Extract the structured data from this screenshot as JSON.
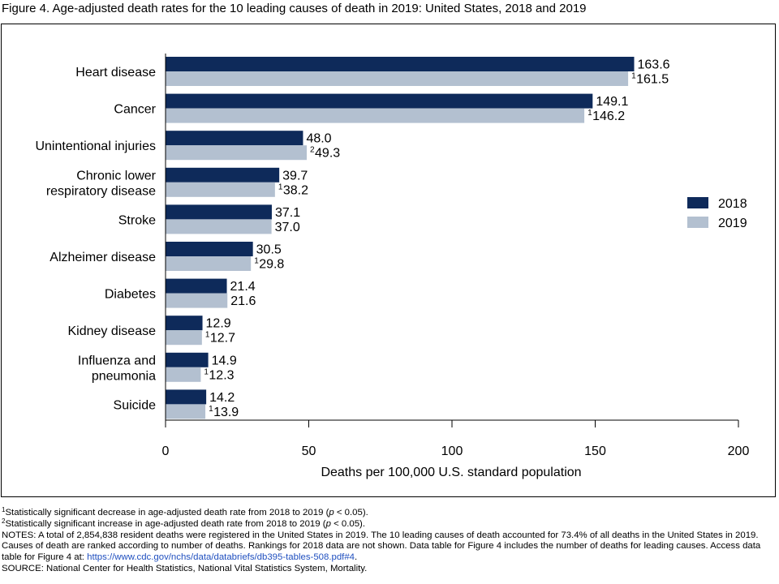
{
  "figure_title": "Figure 4. Age-adjusted death rates for the 10 leading causes of death in 2019: United States, 2018 and 2019",
  "colors": {
    "s2018": "#0e2a5a",
    "s2019": "#b3c0d0",
    "axis": "#000000",
    "link": "#1f4fbf"
  },
  "chart_data": {
    "type": "bar",
    "orientation": "horizontal",
    "categories": [
      [
        "Heart disease"
      ],
      [
        "Cancer"
      ],
      [
        "Unintentional injuries"
      ],
      [
        "Chronic lower",
        "respiratory disease"
      ],
      [
        "Stroke"
      ],
      [
        "Alzheimer disease"
      ],
      [
        "Diabetes"
      ],
      [
        "Kidney disease"
      ],
      [
        "Influenza and",
        "pneumonia"
      ],
      [
        "Suicide"
      ]
    ],
    "series": [
      {
        "name": "2018",
        "values": [
          163.6,
          149.1,
          48.0,
          39.7,
          37.1,
          30.5,
          21.4,
          12.9,
          14.9,
          14.2
        ],
        "labels": [
          "163.6",
          "149.1",
          "48.0",
          "39.7",
          "37.1",
          "30.5",
          "21.4",
          "12.9",
          "14.9",
          "14.2"
        ],
        "marks": [
          "",
          "",
          "",
          "",
          "",
          "",
          "",
          "",
          "",
          ""
        ]
      },
      {
        "name": "2019",
        "values": [
          161.5,
          146.2,
          49.3,
          38.2,
          37.0,
          29.8,
          21.6,
          12.7,
          12.3,
          13.9
        ],
        "labels": [
          "161.5",
          "146.2",
          "49.3",
          "38.2",
          "37.0",
          "29.8",
          "21.6",
          "12.7",
          "12.3",
          "13.9"
        ],
        "marks": [
          "1",
          "1",
          "2",
          "1",
          "",
          "1",
          "",
          "1",
          "1",
          "1"
        ]
      }
    ],
    "xlabel": "Deaths per 100,000 U.S. standard population",
    "xlim": [
      0,
      200
    ],
    "xticks": [
      "0",
      "50",
      "100",
      "150",
      "200"
    ],
    "legend": {
      "position": "right",
      "entries": [
        "2018",
        "2019"
      ]
    },
    "grid": false
  },
  "footnotes": {
    "fn1_mark": "1",
    "fn1_text": "Statistically significant decrease in age-adjusted death rate from 2018 to 2019 (",
    "fn1_p": "p",
    "fn1_end": " < 0.05).",
    "fn2_mark": "2",
    "fn2_text": "Statistically significant increase in age-adjusted death rate from 2018 to 2019 (",
    "fn2_p": "p",
    "fn2_end": " < 0.05).",
    "notes_text": "NOTES: A total of 2,854,838 resident deaths were registered in the United States in 2019. The 10 leading causes of death accounted for 73.4% of all deaths in the United States in 2019. Causes of death are ranked according to number of deaths. Rankings for 2018 data are not shown. Data table for Figure 4 includes the number of deaths for leading causes. Access data table for Figure 4 at: ",
    "notes_link": "https://www.cdc.gov/nchs/data/databriefs/db395-tables-508.pdf#4",
    "notes_end": ".",
    "source": "SOURCE: National Center for Health Statistics, National Vital Statistics System, Mortality."
  }
}
